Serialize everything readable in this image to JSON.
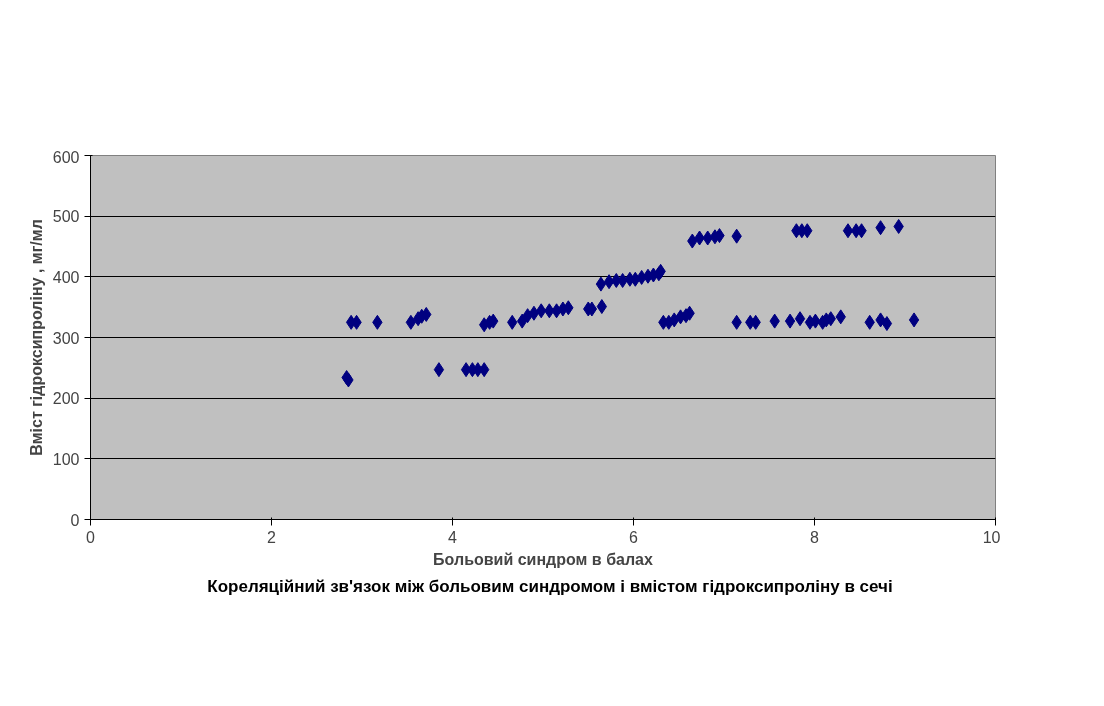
{
  "chart_data": {
    "type": "scatter",
    "xlabel": "Больовий синдром в балах",
    "ylabel": "Вміст гідроксипроліну , мг/мл",
    "annotations": [
      "Кореляційний зв'язок між больовим синдромом і вмістом гідроксипроліну в сечі"
    ],
    "x": [
      2.83,
      2.85,
      2.88,
      2.94,
      3.17,
      3.54,
      3.62,
      3.66,
      3.71,
      3.85,
      4.15,
      4.22,
      4.28,
      4.35,
      4.35,
      4.41,
      4.45,
      4.66,
      4.77,
      4.83,
      4.9,
      4.98,
      5.07,
      5.15,
      5.22,
      5.28,
      5.5,
      5.54,
      5.65,
      5.64,
      5.73,
      5.81,
      5.88,
      5.96,
      6.02,
      6.09,
      6.16,
      6.22,
      6.28,
      6.3,
      6.33,
      6.39,
      6.45,
      6.52,
      6.58,
      6.62,
      6.65,
      6.73,
      6.82,
      6.9,
      6.95,
      7.14,
      7.14,
      7.29,
      7.35,
      7.56,
      7.73,
      7.84,
      7.95,
      8.01,
      8.09,
      8.13,
      8.18,
      8.29,
      8.61,
      8.73,
      8.8,
      9.1,
      7.8,
      7.86,
      7.92,
      8.37,
      8.46,
      8.52,
      8.73,
      8.93
    ],
    "series": [
      {
        "color": "#000080",
        "values": [
          234,
          230,
          325,
          325,
          325,
          325,
          331,
          335,
          338,
          247,
          247,
          247,
          247,
          247,
          321,
          325,
          327,
          325,
          327,
          336,
          340,
          344,
          344,
          344,
          347,
          349,
          347,
          347,
          351,
          388,
          392,
          394,
          394,
          396,
          396,
          399,
          401,
          403,
          405,
          409,
          325,
          325,
          329,
          334,
          336,
          340,
          459,
          464,
          464,
          466,
          468,
          467,
          325,
          325,
          325,
          327,
          327,
          331,
          325,
          327,
          325,
          329,
          331,
          334,
          325,
          329,
          323,
          329,
          476,
          476,
          476,
          476,
          476,
          476,
          481,
          483
        ]
      }
    ],
    "xlim": [
      0,
      10
    ],
    "xticks": [
      0,
      2,
      4,
      6,
      8,
      10
    ],
    "ylim": [
      0,
      600
    ],
    "yticks": [
      0,
      100,
      200,
      300,
      400,
      500,
      600
    ],
    "grid": "y",
    "marker": "diamond"
  }
}
